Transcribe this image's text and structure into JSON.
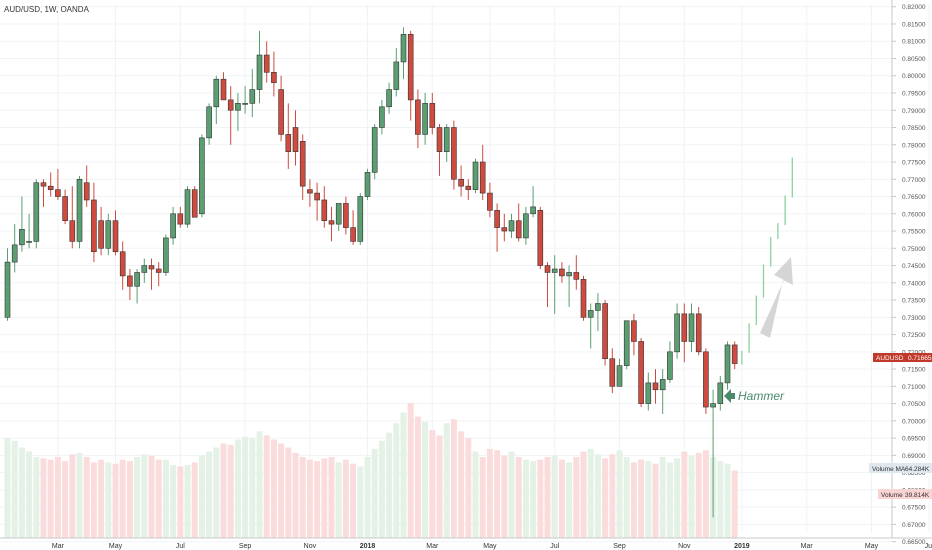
{
  "header": {
    "symbol_label": "AUD/USD, 1W, OANDA"
  },
  "price_axis": {
    "ticks": [
      "0.82000",
      "0.81500",
      "0.81000",
      "0.80500",
      "0.80000",
      "0.79500",
      "0.79000",
      "0.78500",
      "0.78000",
      "0.77500",
      "0.77000",
      "0.76500",
      "0.76000",
      "0.75500",
      "0.75000",
      "0.74500",
      "0.74000",
      "0.73500",
      "0.73000",
      "0.72500",
      "0.72000",
      "0.71500",
      "0.71000",
      "0.70500",
      "0.70000",
      "0.69500",
      "0.69000",
      "0.68500",
      "0.68000",
      "0.67500",
      "0.67000",
      "0.66500"
    ],
    "last_price_badge": {
      "label": "AUDUSD",
      "value": "0.71665",
      "color": "#c0392b"
    },
    "volume_ma_badge": {
      "label": "Volume MA",
      "value": "64.284K"
    },
    "volume_badge": {
      "label": "Volume",
      "value": "39.814K"
    }
  },
  "time_axis": {
    "labels": [
      "Mar",
      "May",
      "Jul",
      "Sep",
      "Nov",
      "2018",
      "Mar",
      "May",
      "Jul",
      "Sep",
      "Nov",
      "2019",
      "Mar",
      "May",
      "Jul"
    ]
  },
  "annotation": {
    "text": "Hammer",
    "color": "#4a8a6a"
  },
  "colors": {
    "up": "#5a9e72",
    "down": "#cf4b3f",
    "vol_up": "#e4f1e6",
    "vol_down": "#fbdcdc",
    "projection": "#8bd39b",
    "arrow": "#d5d5d5"
  },
  "chart_data": {
    "type": "candlestick",
    "title": "AUD/USD, 1W, OANDA",
    "ylim": [
      0.6675,
      0.8205
    ],
    "candles": [
      {
        "o": 0.73,
        "h": 0.75,
        "l": 0.729,
        "c": 0.746
      },
      {
        "o": 0.746,
        "h": 0.757,
        "l": 0.743,
        "c": 0.751
      },
      {
        "o": 0.751,
        "h": 0.765,
        "l": 0.749,
        "c": 0.7555
      },
      {
        "o": 0.752,
        "h": 0.76,
        "l": 0.75,
        "c": 0.752
      },
      {
        "o": 0.752,
        "h": 0.77,
        "l": 0.75,
        "c": 0.769
      },
      {
        "o": 0.769,
        "h": 0.77,
        "l": 0.762,
        "c": 0.768
      },
      {
        "o": 0.768,
        "h": 0.772,
        "l": 0.765,
        "c": 0.767
      },
      {
        "o": 0.767,
        "h": 0.773,
        "l": 0.764,
        "c": 0.765
      },
      {
        "o": 0.765,
        "h": 0.767,
        "l": 0.757,
        "c": 0.758
      },
      {
        "o": 0.758,
        "h": 0.768,
        "l": 0.75,
        "c": 0.752
      },
      {
        "o": 0.752,
        "h": 0.771,
        "l": 0.75,
        "c": 0.77
      },
      {
        "o": 0.769,
        "h": 0.774,
        "l": 0.762,
        "c": 0.764
      },
      {
        "o": 0.764,
        "h": 0.769,
        "l": 0.746,
        "c": 0.749
      },
      {
        "o": 0.758,
        "h": 0.762,
        "l": 0.748,
        "c": 0.75
      },
      {
        "o": 0.75,
        "h": 0.76,
        "l": 0.748,
        "c": 0.758
      },
      {
        "o": 0.758,
        "h": 0.761,
        "l": 0.748,
        "c": 0.749
      },
      {
        "o": 0.749,
        "h": 0.752,
        "l": 0.738,
        "c": 0.742
      },
      {
        "o": 0.742,
        "h": 0.744,
        "l": 0.735,
        "c": 0.739
      },
      {
        "o": 0.739,
        "h": 0.744,
        "l": 0.734,
        "c": 0.743
      },
      {
        "o": 0.743,
        "h": 0.747,
        "l": 0.74,
        "c": 0.745
      },
      {
        "o": 0.745,
        "h": 0.747,
        "l": 0.738,
        "c": 0.744
      },
      {
        "o": 0.744,
        "h": 0.746,
        "l": 0.739,
        "c": 0.743
      },
      {
        "o": 0.743,
        "h": 0.754,
        "l": 0.742,
        "c": 0.753
      },
      {
        "o": 0.753,
        "h": 0.762,
        "l": 0.751,
        "c": 0.76
      },
      {
        "o": 0.76,
        "h": 0.762,
        "l": 0.756,
        "c": 0.757
      },
      {
        "o": 0.757,
        "h": 0.768,
        "l": 0.756,
        "c": 0.767
      },
      {
        "o": 0.767,
        "h": 0.768,
        "l": 0.759,
        "c": 0.759
      },
      {
        "o": 0.76,
        "h": 0.783,
        "l": 0.759,
        "c": 0.782
      },
      {
        "o": 0.782,
        "h": 0.792,
        "l": 0.78,
        "c": 0.791
      },
      {
        "o": 0.791,
        "h": 0.8,
        "l": 0.786,
        "c": 0.799
      },
      {
        "o": 0.799,
        "h": 0.801,
        "l": 0.793,
        "c": 0.793
      },
      {
        "o": 0.793,
        "h": 0.797,
        "l": 0.78,
        "c": 0.79
      },
      {
        "o": 0.79,
        "h": 0.795,
        "l": 0.784,
        "c": 0.792
      },
      {
        "o": 0.792,
        "h": 0.797,
        "l": 0.789,
        "c": 0.792
      },
      {
        "o": 0.792,
        "h": 0.802,
        "l": 0.788,
        "c": 0.796
      },
      {
        "o": 0.796,
        "h": 0.813,
        "l": 0.792,
        "c": 0.806
      },
      {
        "o": 0.806,
        "h": 0.81,
        "l": 0.798,
        "c": 0.801
      },
      {
        "o": 0.801,
        "h": 0.807,
        "l": 0.794,
        "c": 0.798
      },
      {
        "o": 0.796,
        "h": 0.8,
        "l": 0.781,
        "c": 0.783
      },
      {
        "o": 0.783,
        "h": 0.792,
        "l": 0.773,
        "c": 0.778
      },
      {
        "o": 0.785,
        "h": 0.79,
        "l": 0.774,
        "c": 0.778
      },
      {
        "o": 0.781,
        "h": 0.783,
        "l": 0.764,
        "c": 0.768
      },
      {
        "o": 0.767,
        "h": 0.77,
        "l": 0.762,
        "c": 0.766
      },
      {
        "o": 0.766,
        "h": 0.769,
        "l": 0.758,
        "c": 0.764
      },
      {
        "o": 0.764,
        "h": 0.768,
        "l": 0.756,
        "c": 0.758
      },
      {
        "o": 0.758,
        "h": 0.762,
        "l": 0.752,
        "c": 0.757
      },
      {
        "o": 0.757,
        "h": 0.763,
        "l": 0.755,
        "c": 0.763
      },
      {
        "o": 0.763,
        "h": 0.765,
        "l": 0.754,
        "c": 0.756
      },
      {
        "o": 0.756,
        "h": 0.761,
        "l": 0.751,
        "c": 0.752
      },
      {
        "o": 0.752,
        "h": 0.766,
        "l": 0.751,
        "c": 0.765
      },
      {
        "o": 0.765,
        "h": 0.773,
        "l": 0.764,
        "c": 0.772
      },
      {
        "o": 0.772,
        "h": 0.786,
        "l": 0.77,
        "c": 0.785
      },
      {
        "o": 0.785,
        "h": 0.793,
        "l": 0.783,
        "c": 0.791
      },
      {
        "o": 0.791,
        "h": 0.798,
        "l": 0.789,
        "c": 0.796
      },
      {
        "o": 0.796,
        "h": 0.808,
        "l": 0.794,
        "c": 0.804
      },
      {
        "o": 0.804,
        "h": 0.814,
        "l": 0.799,
        "c": 0.812
      },
      {
        "o": 0.812,
        "h": 0.813,
        "l": 0.787,
        "c": 0.793
      },
      {
        "o": 0.793,
        "h": 0.796,
        "l": 0.779,
        "c": 0.783
      },
      {
        "o": 0.783,
        "h": 0.795,
        "l": 0.78,
        "c": 0.792
      },
      {
        "o": 0.792,
        "h": 0.795,
        "l": 0.783,
        "c": 0.785
      },
      {
        "o": 0.785,
        "h": 0.786,
        "l": 0.771,
        "c": 0.778
      },
      {
        "o": 0.778,
        "h": 0.786,
        "l": 0.775,
        "c": 0.785
      },
      {
        "o": 0.785,
        "h": 0.787,
        "l": 0.767,
        "c": 0.77
      },
      {
        "o": 0.77,
        "h": 0.774,
        "l": 0.765,
        "c": 0.768
      },
      {
        "o": 0.768,
        "h": 0.77,
        "l": 0.764,
        "c": 0.767
      },
      {
        "o": 0.767,
        "h": 0.776,
        "l": 0.766,
        "c": 0.775
      },
      {
        "o": 0.775,
        "h": 0.78,
        "l": 0.764,
        "c": 0.766
      },
      {
        "o": 0.766,
        "h": 0.769,
        "l": 0.759,
        "c": 0.761
      },
      {
        "o": 0.761,
        "h": 0.763,
        "l": 0.749,
        "c": 0.756
      },
      {
        "o": 0.756,
        "h": 0.76,
        "l": 0.752,
        "c": 0.755
      },
      {
        "o": 0.755,
        "h": 0.76,
        "l": 0.753,
        "c": 0.758
      },
      {
        "o": 0.758,
        "h": 0.763,
        "l": 0.752,
        "c": 0.753
      },
      {
        "o": 0.753,
        "h": 0.762,
        "l": 0.751,
        "c": 0.76
      },
      {
        "o": 0.76,
        "h": 0.768,
        "l": 0.759,
        "c": 0.762
      },
      {
        "o": 0.761,
        "h": 0.762,
        "l": 0.744,
        "c": 0.745
      },
      {
        "o": 0.745,
        "h": 0.746,
        "l": 0.733,
        "c": 0.743
      },
      {
        "o": 0.743,
        "h": 0.748,
        "l": 0.731,
        "c": 0.744
      },
      {
        "o": 0.744,
        "h": 0.746,
        "l": 0.74,
        "c": 0.742
      },
      {
        "o": 0.742,
        "h": 0.745,
        "l": 0.733,
        "c": 0.743
      },
      {
        "o": 0.743,
        "h": 0.748,
        "l": 0.738,
        "c": 0.741
      },
      {
        "o": 0.741,
        "h": 0.742,
        "l": 0.729,
        "c": 0.73
      },
      {
        "o": 0.73,
        "h": 0.734,
        "l": 0.721,
        "c": 0.732
      },
      {
        "o": 0.732,
        "h": 0.737,
        "l": 0.726,
        "c": 0.734
      },
      {
        "o": 0.734,
        "h": 0.735,
        "l": 0.716,
        "c": 0.718
      },
      {
        "o": 0.718,
        "h": 0.721,
        "l": 0.708,
        "c": 0.71
      },
      {
        "o": 0.71,
        "h": 0.718,
        "l": 0.71,
        "c": 0.716
      },
      {
        "o": 0.716,
        "h": 0.729,
        "l": 0.715,
        "c": 0.729
      },
      {
        "o": 0.729,
        "h": 0.731,
        "l": 0.719,
        "c": 0.723
      },
      {
        "o": 0.723,
        "h": 0.724,
        "l": 0.704,
        "c": 0.705
      },
      {
        "o": 0.705,
        "h": 0.714,
        "l": 0.703,
        "c": 0.711
      },
      {
        "o": 0.711,
        "h": 0.715,
        "l": 0.705,
        "c": 0.709
      },
      {
        "o": 0.709,
        "h": 0.715,
        "l": 0.702,
        "c": 0.712
      },
      {
        "o": 0.712,
        "h": 0.723,
        "l": 0.711,
        "c": 0.72
      },
      {
        "o": 0.72,
        "h": 0.734,
        "l": 0.718,
        "c": 0.731
      },
      {
        "o": 0.731,
        "h": 0.734,
        "l": 0.717,
        "c": 0.723
      },
      {
        "o": 0.723,
        "h": 0.734,
        "l": 0.72,
        "c": 0.731
      },
      {
        "o": 0.731,
        "h": 0.733,
        "l": 0.719,
        "c": 0.72
      },
      {
        "o": 0.72,
        "h": 0.721,
        "l": 0.702,
        "c": 0.704
      },
      {
        "o": 0.704,
        "h": 0.709,
        "l": 0.672,
        "c": 0.705
      },
      {
        "o": 0.705,
        "h": 0.713,
        "l": 0.703,
        "c": 0.711
      },
      {
        "o": 0.711,
        "h": 0.723,
        "l": 0.709,
        "c": 0.722
      },
      {
        "o": 0.722,
        "h": 0.723,
        "l": 0.715,
        "c": 0.7166
      }
    ],
    "projection": [
      0.72,
      0.728,
      0.736,
      0.745,
      0.753,
      0.757,
      0.765,
      0.776
    ],
    "volume": [
      0.74,
      0.72,
      0.67,
      0.64,
      0.6,
      0.59,
      0.58,
      0.6,
      0.57,
      0.62,
      0.63,
      0.6,
      0.56,
      0.58,
      0.56,
      0.55,
      0.58,
      0.57,
      0.6,
      0.62,
      0.61,
      0.58,
      0.58,
      0.54,
      0.53,
      0.54,
      0.56,
      0.61,
      0.64,
      0.67,
      0.7,
      0.69,
      0.73,
      0.75,
      0.74,
      0.79,
      0.76,
      0.73,
      0.7,
      0.67,
      0.63,
      0.6,
      0.58,
      0.57,
      0.59,
      0.6,
      0.56,
      0.58,
      0.55,
      0.53,
      0.6,
      0.66,
      0.72,
      0.78,
      0.85,
      0.93,
      1.0,
      0.9,
      0.86,
      0.8,
      0.76,
      0.85,
      0.88,
      0.79,
      0.74,
      0.64,
      0.6,
      0.66,
      0.65,
      0.61,
      0.64,
      0.6,
      0.58,
      0.57,
      0.58,
      0.6,
      0.61,
      0.58,
      0.56,
      0.6,
      0.64,
      0.66,
      0.62,
      0.59,
      0.62,
      0.65,
      0.6,
      0.56,
      0.58,
      0.57,
      0.55,
      0.6,
      0.56,
      0.59,
      0.64,
      0.61,
      0.63,
      0.65,
      0.6,
      0.57,
      0.55,
      0.5
    ]
  }
}
